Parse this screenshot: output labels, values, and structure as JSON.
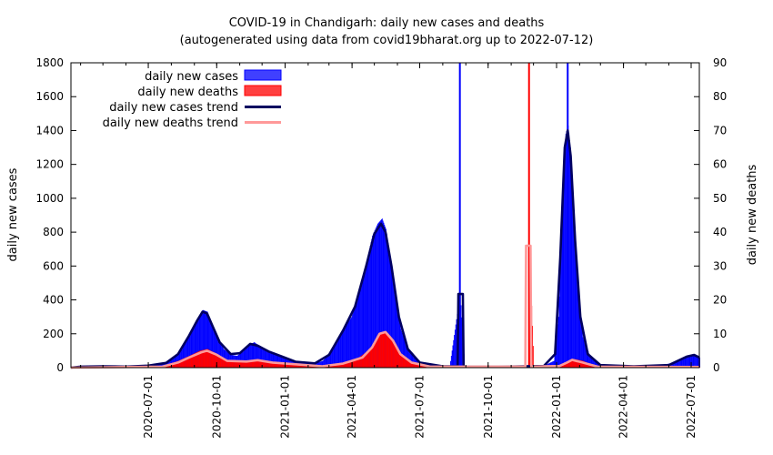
{
  "chart_data": {
    "type": "bar",
    "title": "COVID-19 in Chandigarh: daily new cases and deaths",
    "subtitle": "(autogenerated using data from covid19bharat.org up to 2022-07-12)",
    "ylabel": "daily new cases",
    "y2label": "daily new deaths",
    "xlim": [
      "2020-03-19",
      "2022-07-12"
    ],
    "ylim": [
      0,
      1800
    ],
    "y2lim": [
      0,
      90
    ],
    "yticks": [
      "0",
      "200",
      "400",
      "600",
      "800",
      "1000",
      "1200",
      "1400",
      "1600",
      "1800"
    ],
    "y2ticks": [
      "0",
      "10",
      "20",
      "30",
      "40",
      "50",
      "60",
      "70",
      "80",
      "90"
    ],
    "xticks": [
      "2020-07-01",
      "2020-10-01",
      "2021-01-01",
      "2021-04-01",
      "2021-07-01",
      "2021-10-01",
      "2022-01-01",
      "2022-04-01",
      "2022-07-01"
    ],
    "grid": false,
    "legend_position": "top-left",
    "colors": {
      "cases": "#0000ff",
      "deaths": "#ff0000",
      "cases_trend": "#000060",
      "deaths_trend": "#ff9999"
    },
    "series": [
      {
        "name": "daily new cases",
        "kind": "bar",
        "axis": "left",
        "points": [
          [
            "2020-03-19",
            0
          ],
          [
            "2020-04-01",
            8
          ],
          [
            "2020-04-20",
            10
          ],
          [
            "2020-05-10",
            12
          ],
          [
            "2020-06-01",
            8
          ],
          [
            "2020-06-20",
            12
          ],
          [
            "2020-07-10",
            20
          ],
          [
            "2020-07-25",
            30
          ],
          [
            "2020-08-05",
            60
          ],
          [
            "2020-08-15",
            110
          ],
          [
            "2020-08-25",
            200
          ],
          [
            "2020-09-05",
            290
          ],
          [
            "2020-09-12",
            340
          ],
          [
            "2020-09-18",
            330
          ],
          [
            "2020-09-24",
            260
          ],
          [
            "2020-10-01",
            180
          ],
          [
            "2020-10-10",
            110
          ],
          [
            "2020-10-20",
            75
          ],
          [
            "2020-10-28",
            70
          ],
          [
            "2020-11-05",
            95
          ],
          [
            "2020-11-12",
            130
          ],
          [
            "2020-11-20",
            150
          ],
          [
            "2020-11-28",
            125
          ],
          [
            "2020-12-08",
            100
          ],
          [
            "2020-12-18",
            80
          ],
          [
            "2020-12-28",
            60
          ],
          [
            "2021-01-10",
            40
          ],
          [
            "2021-01-25",
            30
          ],
          [
            "2021-02-10",
            25
          ],
          [
            "2021-02-20",
            40
          ],
          [
            "2021-03-01",
            80
          ],
          [
            "2021-03-10",
            150
          ],
          [
            "2021-03-20",
            230
          ],
          [
            "2021-03-31",
            300
          ],
          [
            "2021-04-10",
            450
          ],
          [
            "2021-04-20",
            620
          ],
          [
            "2021-04-28",
            780
          ],
          [
            "2021-05-05",
            850
          ],
          [
            "2021-05-11",
            880
          ],
          [
            "2021-05-16",
            820
          ],
          [
            "2021-05-22",
            650
          ],
          [
            "2021-05-28",
            430
          ],
          [
            "2021-06-05",
            230
          ],
          [
            "2021-06-15",
            100
          ],
          [
            "2021-06-25",
            50
          ],
          [
            "2021-07-05",
            20
          ],
          [
            "2021-07-25",
            10
          ],
          [
            "2021-08-10",
            8
          ],
          [
            "2021-08-24",
            440
          ],
          [
            "2021-08-30",
            10
          ],
          [
            "2021-09-20",
            6
          ],
          [
            "2021-10-20",
            6
          ],
          [
            "2021-11-20",
            8
          ],
          [
            "2021-12-15",
            12
          ],
          [
            "2021-12-28",
            40
          ],
          [
            "2022-01-03",
            300
          ],
          [
            "2022-01-08",
            900
          ],
          [
            "2022-01-13",
            1380
          ],
          [
            "2022-01-16",
            1430
          ],
          [
            "2022-01-19",
            1300
          ],
          [
            "2022-01-24",
            900
          ],
          [
            "2022-01-29",
            450
          ],
          [
            "2022-02-05",
            180
          ],
          [
            "2022-02-15",
            60
          ],
          [
            "2022-03-01",
            15
          ],
          [
            "2022-04-01",
            8
          ],
          [
            "2022-05-15",
            12
          ],
          [
            "2022-06-10",
            30
          ],
          [
            "2022-06-25",
            70
          ],
          [
            "2022-07-05",
            80
          ],
          [
            "2022-07-12",
            60
          ]
        ]
      },
      {
        "name": "daily new deaths",
        "kind": "bar",
        "axis": "right",
        "points": [
          [
            "2020-03-19",
            0
          ],
          [
            "2020-07-20",
            0.5
          ],
          [
            "2020-08-10",
            2
          ],
          [
            "2020-08-25",
            3.5
          ],
          [
            "2020-09-08",
            5
          ],
          [
            "2020-09-18",
            5.5
          ],
          [
            "2020-10-01",
            4
          ],
          [
            "2020-10-15",
            2
          ],
          [
            "2020-11-10",
            2
          ],
          [
            "2020-11-25",
            2.5
          ],
          [
            "2020-12-15",
            1.5
          ],
          [
            "2021-01-15",
            1
          ],
          [
            "2021-02-20",
            0.5
          ],
          [
            "2021-03-20",
            1.5
          ],
          [
            "2021-04-10",
            3
          ],
          [
            "2021-04-28",
            6
          ],
          [
            "2021-05-06",
            10
          ],
          [
            "2021-05-14",
            10.5
          ],
          [
            "2021-05-22",
            9
          ],
          [
            "2021-06-01",
            5
          ],
          [
            "2021-06-15",
            2
          ],
          [
            "2021-07-10",
            0.5
          ],
          [
            "2021-11-24",
            0.5
          ],
          [
            "2021-11-25",
            36
          ],
          [
            "2021-12-01",
            0.5
          ],
          [
            "2022-01-05",
            0.5
          ],
          [
            "2022-01-15",
            1.5
          ],
          [
            "2022-01-25",
            2.5
          ],
          [
            "2022-02-05",
            2
          ],
          [
            "2022-02-20",
            0.5
          ],
          [
            "2022-07-12",
            0.2
          ]
        ],
        "spikes": [
          [
            "2021-11-25",
            90
          ]
        ]
      },
      {
        "name": "daily new cases trend",
        "kind": "line",
        "axis": "left",
        "points": [
          [
            "2020-03-19",
            0
          ],
          [
            "2020-04-01",
            6
          ],
          [
            "2020-05-01",
            8
          ],
          [
            "2020-06-01",
            6
          ],
          [
            "2020-07-01",
            12
          ],
          [
            "2020-07-25",
            28
          ],
          [
            "2020-08-10",
            80
          ],
          [
            "2020-08-25",
            190
          ],
          [
            "2020-09-05",
            280
          ],
          [
            "2020-09-12",
            330
          ],
          [
            "2020-09-18",
            320
          ],
          [
            "2020-09-25",
            250
          ],
          [
            "2020-10-05",
            150
          ],
          [
            "2020-10-20",
            80
          ],
          [
            "2020-11-01",
            85
          ],
          [
            "2020-11-15",
            140
          ],
          [
            "2020-11-25",
            130
          ],
          [
            "2020-12-10",
            95
          ],
          [
            "2020-12-28",
            65
          ],
          [
            "2021-01-15",
            35
          ],
          [
            "2021-02-10",
            25
          ],
          [
            "2021-03-01",
            75
          ],
          [
            "2021-03-20",
            220
          ],
          [
            "2021-04-05",
            360
          ],
          [
            "2021-04-20",
            600
          ],
          [
            "2021-05-01",
            790
          ],
          [
            "2021-05-10",
            850
          ],
          [
            "2021-05-16",
            800
          ],
          [
            "2021-05-24",
            600
          ],
          [
            "2021-06-03",
            300
          ],
          [
            "2021-06-15",
            110
          ],
          [
            "2021-07-01",
            30
          ],
          [
            "2021-08-01",
            8
          ],
          [
            "2021-08-21",
            8
          ],
          [
            "2021-08-22",
            435
          ],
          [
            "2021-08-28",
            435
          ],
          [
            "2021-08-29",
            6
          ],
          [
            "2021-10-15",
            5
          ],
          [
            "2021-12-15",
            10
          ],
          [
            "2021-12-30",
            80
          ],
          [
            "2022-01-06",
            650
          ],
          [
            "2022-01-12",
            1300
          ],
          [
            "2022-01-16",
            1400
          ],
          [
            "2022-01-20",
            1250
          ],
          [
            "2022-01-26",
            750
          ],
          [
            "2022-02-02",
            300
          ],
          [
            "2022-02-12",
            80
          ],
          [
            "2022-03-01",
            15
          ],
          [
            "2022-04-15",
            8
          ],
          [
            "2022-06-01",
            15
          ],
          [
            "2022-06-25",
            65
          ],
          [
            "2022-07-05",
            75
          ],
          [
            "2022-07-12",
            60
          ]
        ]
      },
      {
        "name": "daily new deaths trend",
        "kind": "line",
        "axis": "right",
        "points": [
          [
            "2020-03-19",
            0
          ],
          [
            "2020-07-20",
            0.3
          ],
          [
            "2020-08-10",
            1.5
          ],
          [
            "2020-08-25",
            3
          ],
          [
            "2020-09-10",
            4.5
          ],
          [
            "2020-09-18",
            5
          ],
          [
            "2020-10-01",
            3.8
          ],
          [
            "2020-10-15",
            2
          ],
          [
            "2020-11-10",
            1.8
          ],
          [
            "2020-11-25",
            2.2
          ],
          [
            "2020-12-15",
            1.5
          ],
          [
            "2021-01-15",
            1
          ],
          [
            "2021-02-20",
            0.4
          ],
          [
            "2021-03-20",
            1.2
          ],
          [
            "2021-04-15",
            3
          ],
          [
            "2021-04-28",
            6
          ],
          [
            "2021-05-08",
            10
          ],
          [
            "2021-05-16",
            10.5
          ],
          [
            "2021-05-26",
            8
          ],
          [
            "2021-06-05",
            4
          ],
          [
            "2021-06-20",
            1.5
          ],
          [
            "2021-07-15",
            0.3
          ],
          [
            "2021-11-20",
            0.3
          ],
          [
            "2021-11-21",
            36
          ],
          [
            "2021-11-27",
            36
          ],
          [
            "2021-11-28",
            0.3
          ],
          [
            "2022-01-05",
            0.5
          ],
          [
            "2022-01-15",
            1.5
          ],
          [
            "2022-01-22",
            2.3
          ],
          [
            "2022-02-05",
            1.5
          ],
          [
            "2022-02-25",
            0.3
          ],
          [
            "2022-07-12",
            0.2
          ]
        ]
      }
    ]
  }
}
